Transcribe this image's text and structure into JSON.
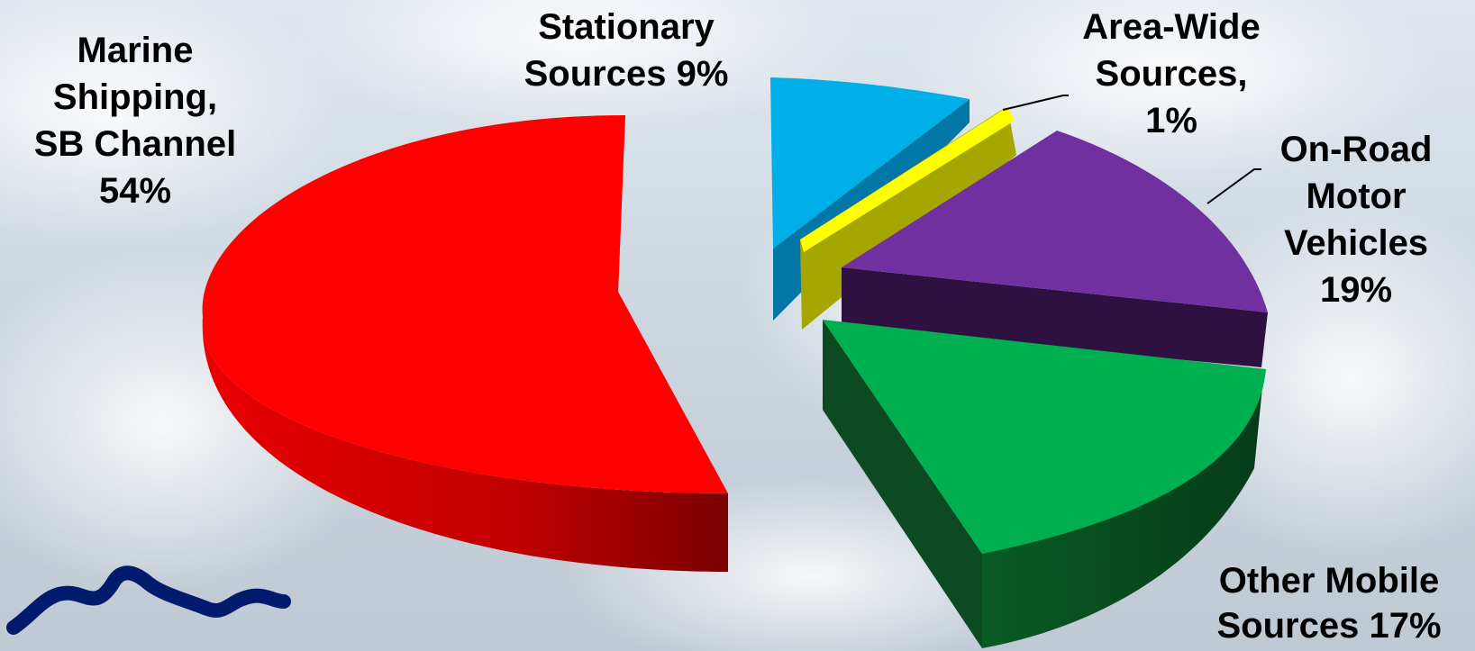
{
  "colors": {
    "marine": "#ff0000",
    "stationary": "#00aee8",
    "area_wide": "#ffff00",
    "on_road": "#7030a0",
    "other_mobile": "#00b050",
    "squiggle": "#001a6e"
  },
  "chart_data": {
    "type": "pie",
    "style": "3d exploded",
    "legend": "none",
    "slices": [
      {
        "key": "marine",
        "lines": [
          "Marine",
          "Shipping,",
          "SB Channel",
          "54%"
        ],
        "value": 54
      },
      {
        "key": "stationary",
        "lines": [
          "Stationary",
          "Sources 9%"
        ],
        "value": 9
      },
      {
        "key": "area_wide",
        "lines": [
          "Area-Wide",
          "Sources,",
          "1%"
        ],
        "value": 1
      },
      {
        "key": "on_road",
        "lines": [
          "On-Road",
          "Motor",
          "Vehicles",
          "19%"
        ],
        "value": 19
      },
      {
        "key": "other_mobile",
        "lines": [
          "Other Mobile",
          "Sources 17%"
        ],
        "value": 17
      }
    ]
  }
}
